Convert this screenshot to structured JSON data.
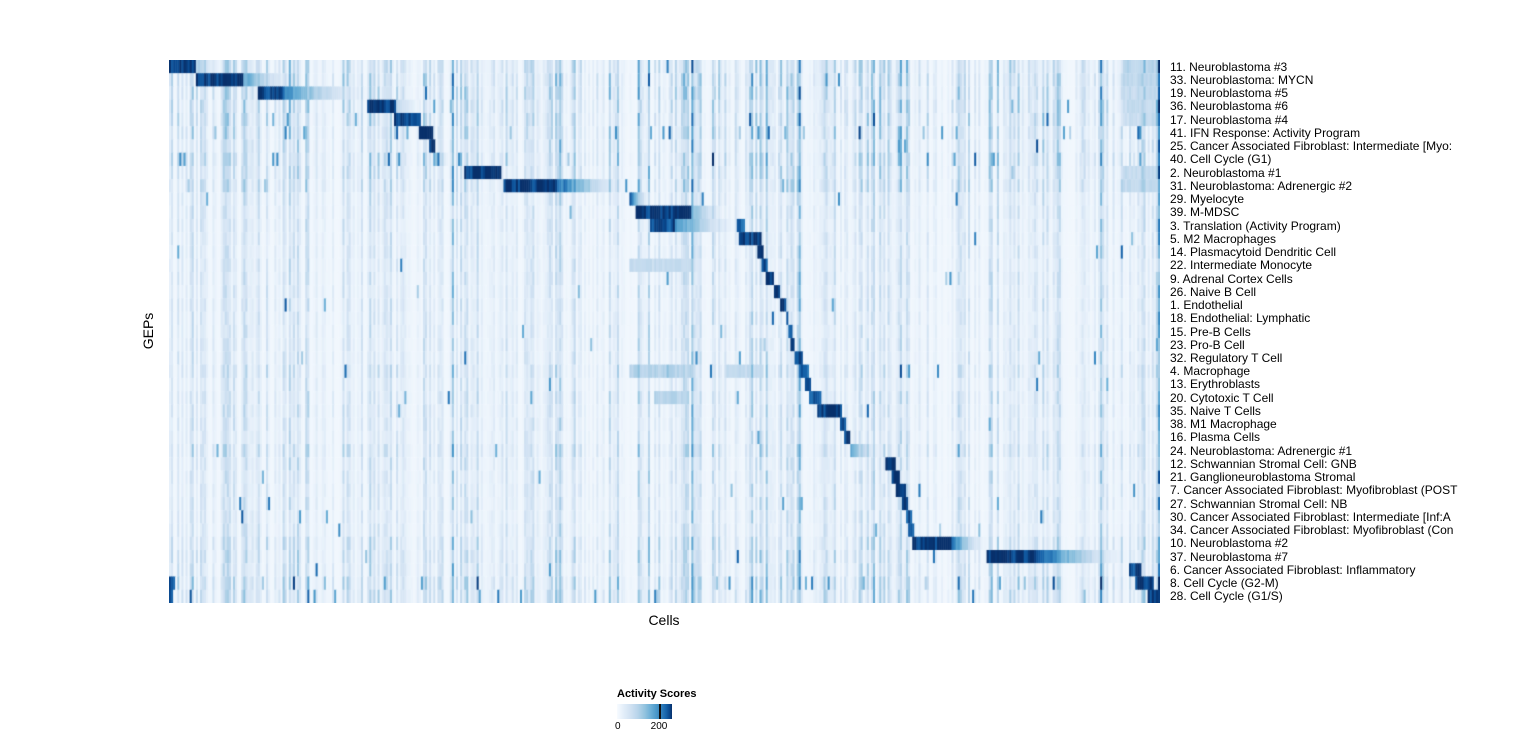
{
  "chart_data": {
    "type": "heatmap",
    "title": "",
    "xlabel": "Cells",
    "ylabel": "GEPs",
    "value_range": [
      0,
      200
    ],
    "legend": {
      "title": "Activity Scores",
      "ticks": [
        0,
        200
      ]
    },
    "colormap": [
      "#f7fbff",
      "#e3eef9",
      "#d0e1f2",
      "#b7d4ea",
      "#94c4df",
      "#6aaed6",
      "#4a98c9",
      "#2e7ebc",
      "#1764ab",
      "#0a4a90",
      "#08306b"
    ],
    "seed": 42,
    "n_columns": 480,
    "global_streaks": [
      {
        "x": 0.588,
        "i": 0.28
      },
      {
        "x": 0.51,
        "i": 0.15
      },
      {
        "x": 0.472,
        "i": 0.15
      },
      {
        "x": 0.3,
        "i": 0.12
      },
      {
        "x": 0.737,
        "i": 0.18
      },
      {
        "x": 0.94,
        "i": 0.12
      },
      {
        "x": 0.996,
        "i": 0.2
      },
      {
        "x": 0.998,
        "i": 0.35
      }
    ],
    "rows": [
      {
        "label": "11. Neuroblastoma #3",
        "wash": 1.5,
        "blocks": [
          {
            "start": 0.0,
            "end": 0.028,
            "peak": 1.0,
            "fade": "flat"
          },
          {
            "start": 0.028,
            "end": 0.06,
            "peak": 0.35,
            "fade": "right"
          },
          {
            "start": 0.962,
            "end": 1.0,
            "peak": 0.3,
            "fade": "flat"
          }
        ]
      },
      {
        "label": "33. Neuroblastoma: MYCN",
        "wash": 1.5,
        "blocks": [
          {
            "start": 0.028,
            "end": 0.075,
            "peak": 1.0,
            "fade": "flat"
          },
          {
            "start": 0.075,
            "end": 0.135,
            "peak": 0.55,
            "fade": "right"
          },
          {
            "start": 0.962,
            "end": 1.0,
            "peak": 0.28,
            "fade": "flat"
          }
        ]
      },
      {
        "label": "19. Neuroblastoma #5",
        "wash": 1.5,
        "blocks": [
          {
            "start": 0.09,
            "end": 0.115,
            "peak": 0.95,
            "fade": "flat"
          },
          {
            "start": 0.115,
            "end": 0.205,
            "peak": 0.7,
            "fade": "right"
          },
          {
            "start": 0.962,
            "end": 1.0,
            "peak": 0.25,
            "fade": "flat"
          }
        ]
      },
      {
        "label": "36. Neuroblastoma #6",
        "wash": 1.4,
        "blocks": [
          {
            "start": 0.2,
            "end": 0.23,
            "peak": 1.0,
            "fade": "flat"
          },
          {
            "start": 0.23,
            "end": 0.26,
            "peak": 0.3,
            "fade": "right"
          },
          {
            "start": 0.962,
            "end": 1.0,
            "peak": 0.25,
            "fade": "flat"
          }
        ]
      },
      {
        "label": "17. Neuroblastoma #4",
        "wash": 1.4,
        "blocks": [
          {
            "start": 0.228,
            "end": 0.255,
            "peak": 1.0,
            "fade": "flat"
          },
          {
            "start": 0.962,
            "end": 1.0,
            "peak": 0.22,
            "fade": "flat"
          }
        ]
      },
      {
        "label": "41. IFN Response: Activity Program",
        "wash": 1.3,
        "speckle": 0.05,
        "blocks": [
          {
            "start": 0.253,
            "end": 0.266,
            "peak": 1.0,
            "fade": "flat"
          },
          {
            "start": 0.735,
            "end": 0.739,
            "peak": 0.55,
            "fade": "flat"
          }
        ]
      },
      {
        "label": "25. Cancer Associated Fibroblast: Intermediate [Myo:",
        "wash": 1.2,
        "blocks": [
          {
            "start": 0.262,
            "end": 0.268,
            "peak": 1.0,
            "fade": "flat"
          },
          {
            "start": 0.735,
            "end": 0.739,
            "peak": 0.6,
            "fade": "flat"
          },
          {
            "start": 0.742,
            "end": 0.745,
            "peak": 0.5,
            "fade": "flat"
          }
        ]
      },
      {
        "label": "40. Cell Cycle (G1)",
        "wash": 1.5,
        "speckle": 0.05,
        "blocks": [
          {
            "start": 0.266,
            "end": 0.285,
            "peak": 0.55,
            "fade": "right"
          },
          {
            "start": 0.735,
            "end": 0.739,
            "peak": 0.5,
            "fade": "flat"
          }
        ]
      },
      {
        "label": "2. Neuroblastoma #1",
        "wash": 1.3,
        "blocks": [
          {
            "start": 0.298,
            "end": 0.335,
            "peak": 1.0,
            "fade": "flat"
          },
          {
            "start": 0.962,
            "end": 1.0,
            "peak": 0.25,
            "fade": "flat"
          }
        ]
      },
      {
        "label": "31. Neuroblastoma: Adrenergic #2",
        "wash": 1.3,
        "blocks": [
          {
            "start": 0.337,
            "end": 0.39,
            "peak": 1.0,
            "fade": "flat"
          },
          {
            "start": 0.39,
            "end": 0.467,
            "peak": 0.85,
            "fade": "right"
          },
          {
            "start": 0.962,
            "end": 1.0,
            "peak": 0.25,
            "fade": "flat"
          }
        ]
      },
      {
        "label": "29. Myelocyte",
        "wash": 0.9,
        "blocks": [
          {
            "start": 0.465,
            "end": 0.487,
            "peak": 0.8,
            "fade": "right"
          }
        ]
      },
      {
        "label": "39. M-MDSC",
        "wash": 0.9,
        "blocks": [
          {
            "start": 0.47,
            "end": 0.527,
            "peak": 1.0,
            "fade": "flat"
          },
          {
            "start": 0.527,
            "end": 0.565,
            "peak": 0.5,
            "fade": "right"
          }
        ]
      },
      {
        "label": "3. Translation (Activity Program)",
        "wash": 0.9,
        "blocks": [
          {
            "start": 0.485,
            "end": 0.51,
            "peak": 0.9,
            "fade": "flat"
          },
          {
            "start": 0.51,
            "end": 0.578,
            "peak": 0.7,
            "fade": "right"
          },
          {
            "start": 0.572,
            "end": 0.582,
            "peak": 0.8,
            "fade": "flat"
          }
        ]
      },
      {
        "label": "5. M2 Macrophages",
        "wash": 0.85,
        "blocks": [
          {
            "start": 0.576,
            "end": 0.595,
            "peak": 1.0,
            "fade": "flat"
          }
        ]
      },
      {
        "label": "14. Plasmacytoid Dendritic Cell",
        "wash": 0.85,
        "blocks": [
          {
            "start": 0.593,
            "end": 0.6,
            "peak": 1.0,
            "fade": "flat"
          }
        ]
      },
      {
        "label": "22. Intermediate Monocyte",
        "wash": 0.85,
        "blocks": [
          {
            "start": 0.598,
            "end": 0.604,
            "peak": 0.9,
            "fade": "flat"
          },
          {
            "start": 0.465,
            "end": 0.53,
            "peak": 0.25,
            "fade": "flat"
          }
        ]
      },
      {
        "label": "9. Adrenal Cortex Cells",
        "wash": 0.85,
        "blocks": [
          {
            "start": 0.603,
            "end": 0.611,
            "peak": 1.0,
            "fade": "flat"
          }
        ]
      },
      {
        "label": "26. Naive B Cell",
        "wash": 0.85,
        "blocks": [
          {
            "start": 0.61,
            "end": 0.617,
            "peak": 0.95,
            "fade": "flat"
          }
        ]
      },
      {
        "label": "1. Endothelial",
        "wash": 0.85,
        "blocks": [
          {
            "start": 0.616,
            "end": 0.623,
            "peak": 1.0,
            "fade": "flat"
          }
        ]
      },
      {
        "label": "18. Endothelial: Lymphatic",
        "wash": 0.85,
        "blocks": [
          {
            "start": 0.622,
            "end": 0.626,
            "peak": 0.9,
            "fade": "flat"
          }
        ]
      },
      {
        "label": "15. Pre-B Cells",
        "wash": 0.85,
        "blocks": [
          {
            "start": 0.625,
            "end": 0.629,
            "peak": 0.9,
            "fade": "flat"
          }
        ]
      },
      {
        "label": "23. Pro-B Cell",
        "wash": 0.85,
        "blocks": [
          {
            "start": 0.628,
            "end": 0.632,
            "peak": 0.9,
            "fade": "flat"
          }
        ]
      },
      {
        "label": "32. Regulatory T Cell",
        "wash": 0.85,
        "blocks": [
          {
            "start": 0.631,
            "end": 0.639,
            "peak": 0.9,
            "fade": "flat"
          }
        ]
      },
      {
        "label": "4. Macrophage",
        "wash": 1.1,
        "blocks": [
          {
            "start": 0.636,
            "end": 0.645,
            "peak": 0.85,
            "fade": "flat"
          },
          {
            "start": 0.465,
            "end": 0.53,
            "peak": 0.3,
            "fade": "flat"
          },
          {
            "start": 0.56,
            "end": 0.6,
            "peak": 0.25,
            "fade": "flat"
          }
        ]
      },
      {
        "label": "13. Erythroblasts",
        "wash": 0.85,
        "blocks": [
          {
            "start": 0.642,
            "end": 0.648,
            "peak": 1.0,
            "fade": "flat"
          }
        ]
      },
      {
        "label": "20. Cytotoxic T Cell",
        "wash": 0.95,
        "blocks": [
          {
            "start": 0.645,
            "end": 0.658,
            "peak": 0.9,
            "fade": "flat"
          },
          {
            "start": 0.49,
            "end": 0.525,
            "peak": 0.3,
            "fade": "flat"
          }
        ]
      },
      {
        "label": "35. Naive T Cells",
        "wash": 0.95,
        "blocks": [
          {
            "start": 0.655,
            "end": 0.68,
            "peak": 1.0,
            "fade": "flat"
          }
        ]
      },
      {
        "label": "38. M1 Macrophage",
        "wash": 0.9,
        "blocks": [
          {
            "start": 0.678,
            "end": 0.683,
            "peak": 0.9,
            "fade": "flat"
          }
        ]
      },
      {
        "label": "16. Plasma Cells",
        "wash": 0.85,
        "blocks": [
          {
            "start": 0.682,
            "end": 0.688,
            "peak": 1.0,
            "fade": "flat"
          }
        ]
      },
      {
        "label": "24. Neuroblastoma: Adrenergic #1",
        "wash": 1.2,
        "blocks": [
          {
            "start": 0.687,
            "end": 0.725,
            "peak": 0.55,
            "fade": "right"
          }
        ]
      },
      {
        "label": "12. Schwannian Stromal Cell: GNB",
        "wash": 0.9,
        "blocks": [
          {
            "start": 0.723,
            "end": 0.733,
            "peak": 1.0,
            "fade": "flat"
          }
        ]
      },
      {
        "label": "21. Ganglioneuroblastoma Stromal",
        "wash": 0.9,
        "blocks": [
          {
            "start": 0.729,
            "end": 0.738,
            "peak": 1.0,
            "fade": "flat"
          }
        ]
      },
      {
        "label": "7. Cancer Associated Fibroblast: Myofibroblast (POST",
        "wash": 0.9,
        "blocks": [
          {
            "start": 0.734,
            "end": 0.743,
            "peak": 1.0,
            "fade": "flat"
          }
        ]
      },
      {
        "label": "27. Schwannian Stromal Cell: NB",
        "wash": 0.9,
        "blocks": [
          {
            "start": 0.74,
            "end": 0.746,
            "peak": 0.95,
            "fade": "flat"
          }
        ]
      },
      {
        "label": "30. Cancer Associated Fibroblast: Intermediate [Inf:A",
        "wash": 0.9,
        "blocks": [
          {
            "start": 0.743,
            "end": 0.749,
            "peak": 0.9,
            "fade": "flat"
          }
        ]
      },
      {
        "label": "34. Cancer Associated Fibroblast: Myofibroblast (Con",
        "wash": 0.9,
        "blocks": [
          {
            "start": 0.746,
            "end": 0.752,
            "peak": 0.9,
            "fade": "flat"
          }
        ]
      },
      {
        "label": "10. Neuroblastoma #2",
        "wash": 1.2,
        "blocks": [
          {
            "start": 0.75,
            "end": 0.79,
            "peak": 1.0,
            "fade": "flat"
          },
          {
            "start": 0.79,
            "end": 0.826,
            "peak": 0.8,
            "fade": "right"
          }
        ]
      },
      {
        "label": "37. Neuroblastoma #7",
        "wash": 1.2,
        "blocks": [
          {
            "start": 0.825,
            "end": 0.88,
            "peak": 1.0,
            "fade": "flat"
          },
          {
            "start": 0.88,
            "end": 0.972,
            "peak": 0.85,
            "fade": "right"
          }
        ]
      },
      {
        "label": "6. Cancer Associated Fibroblast: Inflammatory",
        "wash": 1.1,
        "blocks": [
          {
            "start": 0.968,
            "end": 0.981,
            "peak": 0.9,
            "fade": "flat"
          }
        ]
      },
      {
        "label": "8. Cell Cycle (G2-M)",
        "wash": 1.5,
        "speckle": 0.04,
        "blocks": [
          {
            "start": 0.975,
            "end": 0.993,
            "peak": 1.0,
            "fade": "flat"
          },
          {
            "start": 0.0,
            "end": 0.006,
            "peak": 0.9,
            "fade": "flat"
          }
        ]
      },
      {
        "label": "28. Cell Cycle (G1/S)",
        "wash": 1.4,
        "speckle": 0.03,
        "blocks": [
          {
            "start": 0.988,
            "end": 1.0,
            "peak": 1.0,
            "fade": "flat"
          },
          {
            "start": 0.0,
            "end": 0.005,
            "peak": 0.8,
            "fade": "flat"
          }
        ]
      }
    ]
  }
}
